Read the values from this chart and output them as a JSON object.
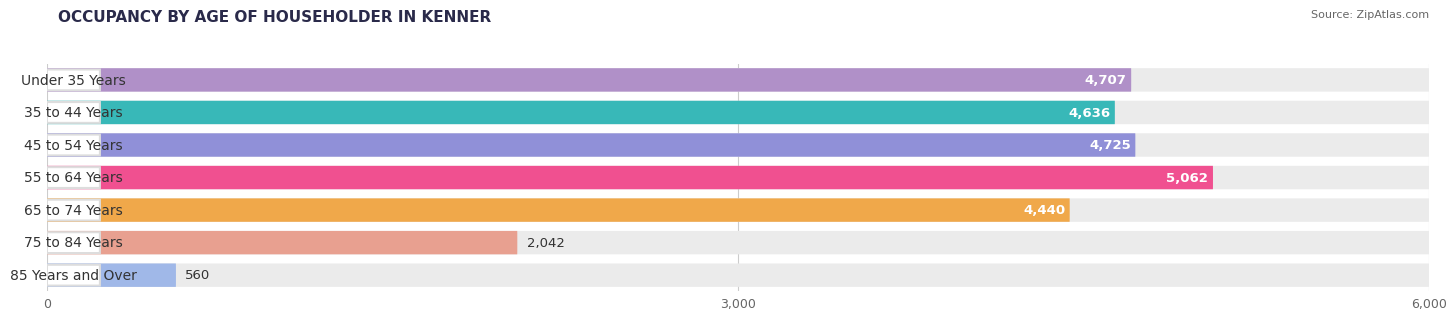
{
  "title": "OCCUPANCY BY AGE OF HOUSEHOLDER IN KENNER",
  "source": "Source: ZipAtlas.com",
  "categories": [
    "Under 35 Years",
    "35 to 44 Years",
    "45 to 54 Years",
    "55 to 64 Years",
    "65 to 74 Years",
    "75 to 84 Years",
    "85 Years and Over"
  ],
  "values": [
    4707,
    4636,
    4725,
    5062,
    4440,
    2042,
    560
  ],
  "bar_colors": [
    "#b090c8",
    "#38b8b8",
    "#9090d8",
    "#f05090",
    "#f0a84a",
    "#e8a090",
    "#a0b8e8"
  ],
  "value_colors": [
    "white",
    "white",
    "white",
    "white",
    "white",
    "black",
    "black"
  ],
  "xlim": [
    0,
    6000
  ],
  "xticks": [
    0,
    3000,
    6000
  ],
  "background_color": "#ffffff",
  "bar_bg_color": "#ebebeb",
  "title_fontsize": 11,
  "label_fontsize": 10,
  "value_fontsize": 9.5
}
